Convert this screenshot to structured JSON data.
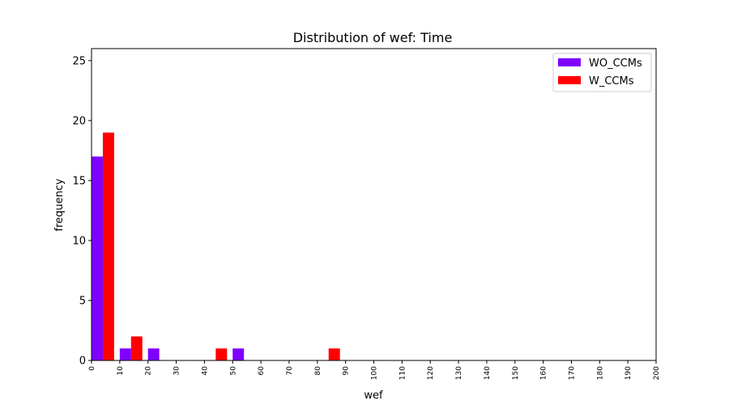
{
  "chart_data": {
    "type": "bar",
    "title": "Distribution of wef: Time",
    "xlabel": "wef",
    "ylabel": "frequency",
    "xlim": [
      0,
      200
    ],
    "ylim": [
      0,
      26
    ],
    "xticks": [
      0,
      10,
      20,
      30,
      40,
      50,
      60,
      70,
      80,
      90,
      100,
      110,
      120,
      130,
      140,
      150,
      160,
      170,
      180,
      190,
      200
    ],
    "yticks": [
      0,
      5,
      10,
      15,
      20,
      25
    ],
    "bin_width": 10,
    "grid": false,
    "legend_position": "top-right",
    "series": [
      {
        "name": "WO_CCMs",
        "color": "#7f00ff",
        "bins": [
          0,
          10,
          20,
          50
        ],
        "values": [
          17,
          1,
          1,
          1
        ]
      },
      {
        "name": "W_CCMs",
        "color": "#ff0000",
        "bins": [
          0,
          10,
          40,
          80
        ],
        "values": [
          19,
          2,
          1,
          1
        ]
      }
    ]
  }
}
